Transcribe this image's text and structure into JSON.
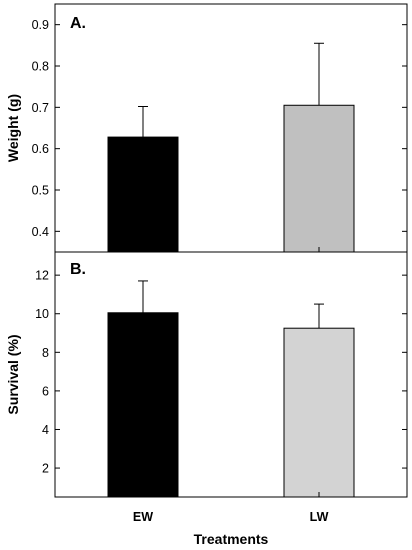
{
  "chart_data": [
    {
      "type": "bar",
      "panel_label": "A.",
      "categories": [
        "EW",
        "LW"
      ],
      "values": [
        0.628,
        0.705
      ],
      "error_upper": [
        0.702,
        0.855
      ],
      "bar_colors": [
        "#000000",
        "#c0c0c0"
      ],
      "ylabel": "Weight (g)",
      "ylim": [
        0.35,
        0.95
      ],
      "yticks": [
        0.4,
        0.5,
        0.6,
        0.7,
        0.8,
        0.9
      ],
      "ytick_labels": [
        "0.4",
        "0.5",
        "0.6",
        "0.7",
        "0.8",
        "0.9"
      ],
      "grid": false
    },
    {
      "type": "bar",
      "panel_label": "B.",
      "categories": [
        "EW",
        "LW"
      ],
      "values": [
        10.05,
        9.25
      ],
      "error_upper": [
        11.7,
        10.5
      ],
      "bar_colors": [
        "#000000",
        "#d3d3d3"
      ],
      "ylabel": "Survival (%)",
      "ylim": [
        0.5,
        13.2
      ],
      "yticks": [
        2,
        4,
        6,
        8,
        10,
        12
      ],
      "ytick_labels": [
        "2",
        "4",
        "6",
        "8",
        "10",
        "12"
      ],
      "grid": false
    }
  ],
  "xlabel": "Treatments",
  "category_labels": [
    "EW",
    "LW"
  ]
}
